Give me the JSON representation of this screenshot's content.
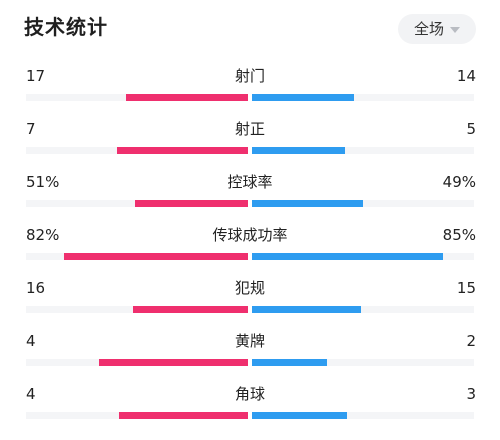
{
  "header": {
    "title": "技术统计",
    "scope_selected": "全场"
  },
  "colors": {
    "home_bar": "#ef2f6e",
    "away_bar": "#2e9cf0",
    "track": "#f4f5f7"
  },
  "stats": [
    {
      "label": "射门",
      "home": "17",
      "away": "14",
      "home_fraction": 0.55,
      "away_fraction": 0.46
    },
    {
      "label": "射正",
      "home": "7",
      "away": "5",
      "home_fraction": 0.59,
      "away_fraction": 0.42
    },
    {
      "label": "控球率",
      "home": "51%",
      "away": "49%",
      "home_fraction": 0.51,
      "away_fraction": 0.5
    },
    {
      "label": "传球成功率",
      "home": "82%",
      "away": "85%",
      "home_fraction": 0.83,
      "away_fraction": 0.86
    },
    {
      "label": "犯规",
      "home": "16",
      "away": "15",
      "home_fraction": 0.52,
      "away_fraction": 0.49
    },
    {
      "label": "黄牌",
      "home": "4",
      "away": "2",
      "home_fraction": 0.67,
      "away_fraction": 0.34
    },
    {
      "label": "角球",
      "home": "4",
      "away": "3",
      "home_fraction": 0.58,
      "away_fraction": 0.43
    }
  ]
}
